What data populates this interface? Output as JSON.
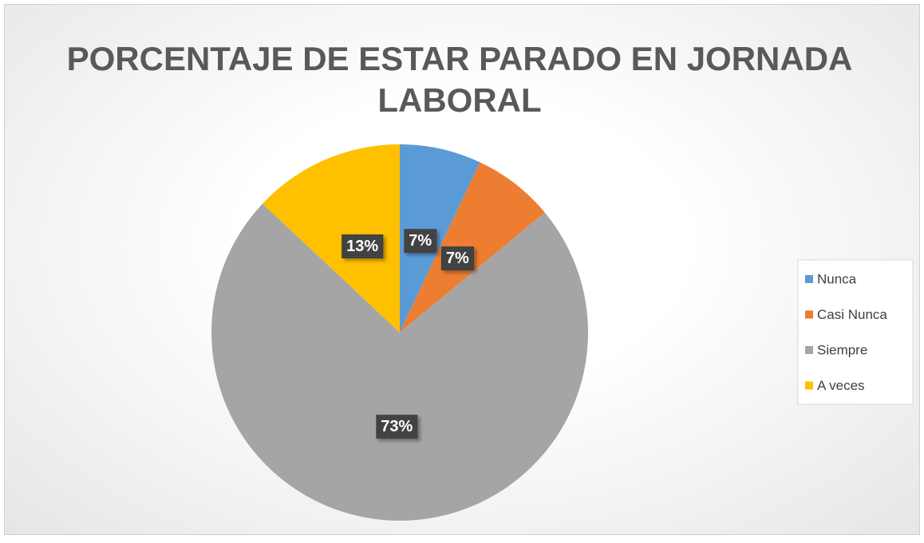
{
  "chart_data": {
    "type": "pie",
    "title": "PORCENTAJE DE ESTAR PARADO EN JORNADA LABORAL",
    "categories": [
      "Nunca",
      "Casi Nunca",
      "Siempre",
      "A veces"
    ],
    "values": [
      7,
      7,
      73,
      13
    ],
    "value_labels": [
      "7%",
      "7%",
      "73%",
      "13%"
    ],
    "colors": [
      "#5b9bd5",
      "#ed7d31",
      "#a5a5a5",
      "#ffc000"
    ],
    "legend": "right"
  }
}
